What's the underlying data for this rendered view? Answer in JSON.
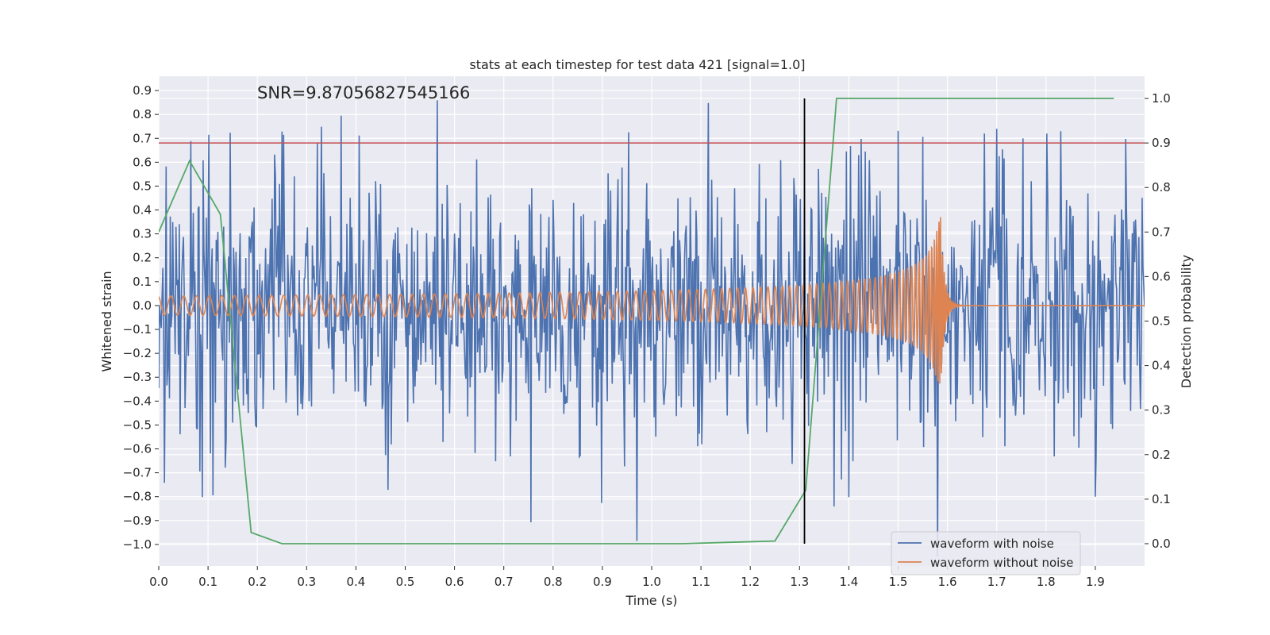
{
  "chart_data": {
    "type": "line",
    "title": "stats at each timestep for test data 421 [signal=1.0]",
    "xlabel": "Time (s)",
    "ylabel": "Whitened strain",
    "y2label": "Detection probability",
    "xlim": [
      0.0,
      2.0
    ],
    "ylim": [
      -1.09,
      0.96
    ],
    "y2lim": [
      -0.05,
      1.05
    ],
    "xticks": [
      "0.0",
      "0.1",
      "0.2",
      "0.3",
      "0.4",
      "0.5",
      "0.6",
      "0.7",
      "0.8",
      "0.9",
      "1.0",
      "1.1",
      "1.2",
      "1.3",
      "1.4",
      "1.5",
      "1.6",
      "1.7",
      "1.8",
      "1.9"
    ],
    "yticks": [
      "0.9",
      "0.8",
      "0.7",
      "0.6",
      "0.5",
      "0.4",
      "0.3",
      "0.2",
      "0.1",
      "0.0",
      "-0.1",
      "-0.2",
      "-0.3",
      "-0.4",
      "-0.5",
      "-0.6",
      "-0.7",
      "-0.8",
      "-0.9",
      "-1.0"
    ],
    "y2ticks": [
      "1.0",
      "0.9",
      "0.8",
      "0.7",
      "0.6",
      "0.5",
      "0.4",
      "0.3",
      "0.2",
      "0.1",
      "0.0"
    ],
    "grid": true,
    "legend_position": "lower-right",
    "annotation": "SNR=9.87056827545166",
    "threshold_line": {
      "axis": "y2",
      "value": 0.9,
      "color": "#c44e52"
    },
    "vertical_marker": {
      "x": 1.31,
      "color": "#000000"
    },
    "series": [
      {
        "name": "waveform with noise",
        "axis": "y",
        "color": "#4c72b0",
        "kind": "noise",
        "x_range": [
          0.0,
          2.0
        ],
        "points": 1200,
        "std": 0.27,
        "peaks": [
          {
            "x": 0.065,
            "y": 0.7
          },
          {
            "x": 0.145,
            "y": 0.73
          },
          {
            "x": 0.33,
            "y": 0.74
          },
          {
            "x": 0.37,
            "y": 0.79
          },
          {
            "x": 0.565,
            "y": 0.86
          },
          {
            "x": 1.115,
            "y": 0.86
          },
          {
            "x": 1.5,
            "y": 0.73
          },
          {
            "x": 1.55,
            "y": 0.65
          },
          {
            "x": 1.58,
            "y": 0.67
          },
          {
            "x": 1.7,
            "y": 0.74
          },
          {
            "x": 1.83,
            "y": 0.73
          },
          {
            "x": 0.088,
            "y": -0.79
          },
          {
            "x": 0.755,
            "y": -0.92
          },
          {
            "x": 0.97,
            "y": -1.0
          },
          {
            "x": 1.58,
            "y": -1.0
          },
          {
            "x": 1.4,
            "y": -0.81
          },
          {
            "x": 1.9,
            "y": -0.8
          },
          {
            "x": 0.012,
            "y": -0.73
          },
          {
            "x": 0.465,
            "y": -0.78
          },
          {
            "x": 1.37,
            "y": -0.84
          }
        ]
      },
      {
        "name": "waveform without noise",
        "axis": "y",
        "color": "#dd8452",
        "kind": "chirp",
        "x_range": [
          0.0,
          2.0
        ],
        "merger_time": 1.585,
        "start_amplitude": 0.04,
        "peak_amplitude": 0.42
      },
      {
        "name": "detection probability",
        "axis": "y2",
        "color": "#55a868",
        "kind": "line",
        "x": [
          0.0,
          0.0625,
          0.125,
          0.1875,
          0.25,
          0.3125,
          0.375,
          0.4375,
          0.5,
          0.5625,
          0.625,
          0.6875,
          0.75,
          0.8125,
          0.875,
          0.9375,
          1.0,
          1.0625,
          1.125,
          1.1875,
          1.25,
          1.3125,
          1.375,
          1.4375,
          1.5,
          1.5625,
          1.625,
          1.6875,
          1.75,
          1.8125,
          1.875,
          1.9375
        ],
        "y": [
          0.7,
          0.86,
          0.74,
          0.025,
          0.0,
          0.0,
          0.0,
          0.0,
          0.0,
          0.0,
          0.0,
          0.0,
          0.0,
          0.0,
          0.0,
          0.0,
          0.0,
          0.0,
          0.002,
          0.004,
          0.006,
          0.12,
          1.0,
          1.0,
          1.0,
          1.0,
          1.0,
          1.0,
          1.0,
          1.0,
          1.0,
          1.0
        ]
      }
    ]
  }
}
